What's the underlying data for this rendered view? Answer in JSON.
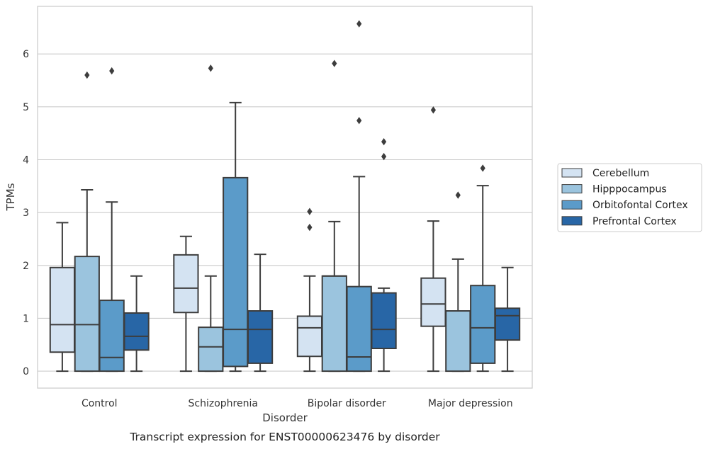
{
  "chart_data": {
    "type": "box",
    "xlabel": "Disorder",
    "ylabel": "TPMs",
    "caption": "Transcript expression for ENST00000623476 by disorder",
    "ylim": [
      -0.32,
      6.9
    ],
    "yticks": [
      "0",
      "1",
      "2",
      "3",
      "4",
      "5",
      "6"
    ],
    "grid": true,
    "legend_position": "right",
    "categories": [
      "Control",
      "Schizophrenia",
      "Bipolar disorder",
      "Major depression"
    ],
    "series": [
      {
        "name": "Cerebellum",
        "color": "#d4e3f2",
        "boxes": [
          {
            "whisker_low": 0,
            "q1": 0.36,
            "median": 0.88,
            "q3": 1.96,
            "whisker_high": 2.81,
            "outliers": []
          },
          {
            "whisker_low": 0,
            "q1": 1.11,
            "median": 1.57,
            "q3": 2.2,
            "whisker_high": 2.55,
            "outliers": []
          },
          {
            "whisker_low": 0,
            "q1": 0.28,
            "median": 0.82,
            "q3": 1.04,
            "whisker_high": 1.8,
            "outliers": [
              2.72,
              3.02
            ]
          },
          {
            "whisker_low": 0,
            "q1": 0.85,
            "median": 1.27,
            "q3": 1.76,
            "whisker_high": 2.84,
            "outliers": [
              4.94
            ]
          }
        ]
      },
      {
        "name": "Hipppocampus",
        "color": "#9bc4de",
        "boxes": [
          {
            "whisker_low": 0,
            "q1": 0,
            "median": 0.88,
            "q3": 2.17,
            "whisker_high": 3.43,
            "outliers": [
              5.6
            ]
          },
          {
            "whisker_low": 0,
            "q1": 0,
            "median": 0.46,
            "q3": 0.83,
            "whisker_high": 1.8,
            "outliers": [
              5.73
            ]
          },
          {
            "whisker_low": 0,
            "q1": 0,
            "median": 1.8,
            "q3": 1.8,
            "whisker_high": 2.83,
            "outliers": [
              5.82
            ]
          },
          {
            "whisker_low": 0,
            "q1": 0,
            "median": 1.14,
            "q3": 1.14,
            "whisker_high": 2.12,
            "outliers": [
              3.33
            ]
          }
        ]
      },
      {
        "name": "Orbitofontal Cortex",
        "color": "#5b9bc9",
        "boxes": [
          {
            "whisker_low": 0,
            "q1": 0,
            "median": 0.26,
            "q3": 1.34,
            "whisker_high": 3.2,
            "outliers": [
              5.68
            ]
          },
          {
            "whisker_low": 0,
            "q1": 0.09,
            "median": 0.79,
            "q3": 3.66,
            "whisker_high": 5.08,
            "outliers": []
          },
          {
            "whisker_low": 0,
            "q1": 0,
            "median": 0.27,
            "q3": 1.6,
            "whisker_high": 3.68,
            "outliers": [
              4.74,
              6.57
            ]
          },
          {
            "whisker_low": 0,
            "q1": 0.15,
            "median": 0.82,
            "q3": 1.62,
            "whisker_high": 3.51,
            "outliers": [
              3.84
            ]
          }
        ]
      },
      {
        "name": "Prefrontal Cortex",
        "color": "#2866a6",
        "boxes": [
          {
            "whisker_low": 0,
            "q1": 0.4,
            "median": 0.66,
            "q3": 1.1,
            "whisker_high": 1.8,
            "outliers": []
          },
          {
            "whisker_low": 0,
            "q1": 0.15,
            "median": 0.79,
            "q3": 1.14,
            "whisker_high": 2.21,
            "outliers": []
          },
          {
            "whisker_low": 0,
            "q1": 0.43,
            "median": 0.79,
            "q3": 1.48,
            "whisker_high": 1.57,
            "outliers": [
              4.06,
              4.34
            ]
          },
          {
            "whisker_low": 0,
            "q1": 0.59,
            "median": 1.05,
            "q3": 1.19,
            "whisker_high": 1.96,
            "outliers": []
          }
        ]
      }
    ]
  }
}
